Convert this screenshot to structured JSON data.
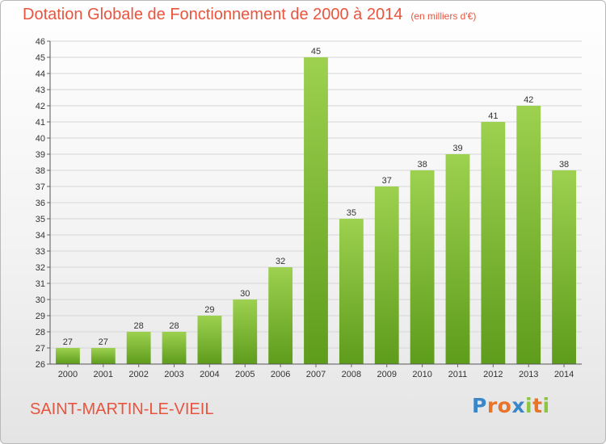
{
  "title": "Dotation Globale de Fonctionnement de 2000 à 2014",
  "subtitle": "(en milliers d'€)",
  "commune": "SAINT-MARTIN-LE-VIEIL",
  "logo": {
    "text": "Proxiti",
    "letters": [
      {
        "char": "P",
        "color": "#3a86c8"
      },
      {
        "char": "r",
        "color": "#e8742a"
      },
      {
        "char": "o",
        "color": "#e8742a"
      },
      {
        "char": "x",
        "color": "#3a86c8"
      },
      {
        "char": "i",
        "color": "#8cc63f"
      },
      {
        "char": "t",
        "color": "#e8742a"
      },
      {
        "char": "i",
        "color": "#8cc63f"
      }
    ]
  },
  "colors": {
    "title": "#e9543e",
    "bar_light": "#9dd14f",
    "bar_dark": "#5e9c1c",
    "grid": "#d6d6d6"
  },
  "chart_data": {
    "type": "bar",
    "title": "Dotation Globale de Fonctionnement de 2000 à 2014",
    "subtitle": "(en milliers d'€)",
    "xlabel": "",
    "ylabel": "",
    "categories": [
      "2000",
      "2001",
      "2002",
      "2003",
      "2004",
      "2005",
      "2006",
      "2007",
      "2008",
      "2009",
      "2010",
      "2011",
      "2012",
      "2013",
      "2014"
    ],
    "values": [
      27,
      27,
      28,
      28,
      29,
      30,
      32,
      45,
      35,
      37,
      38,
      39,
      41,
      42,
      38
    ],
    "ylim": [
      26,
      46
    ],
    "yticks": [
      26,
      27,
      28,
      29,
      30,
      31,
      32,
      33,
      34,
      35,
      36,
      37,
      38,
      39,
      40,
      41,
      42,
      43,
      44,
      45,
      46
    ],
    "grid": true,
    "data_labels": true
  }
}
